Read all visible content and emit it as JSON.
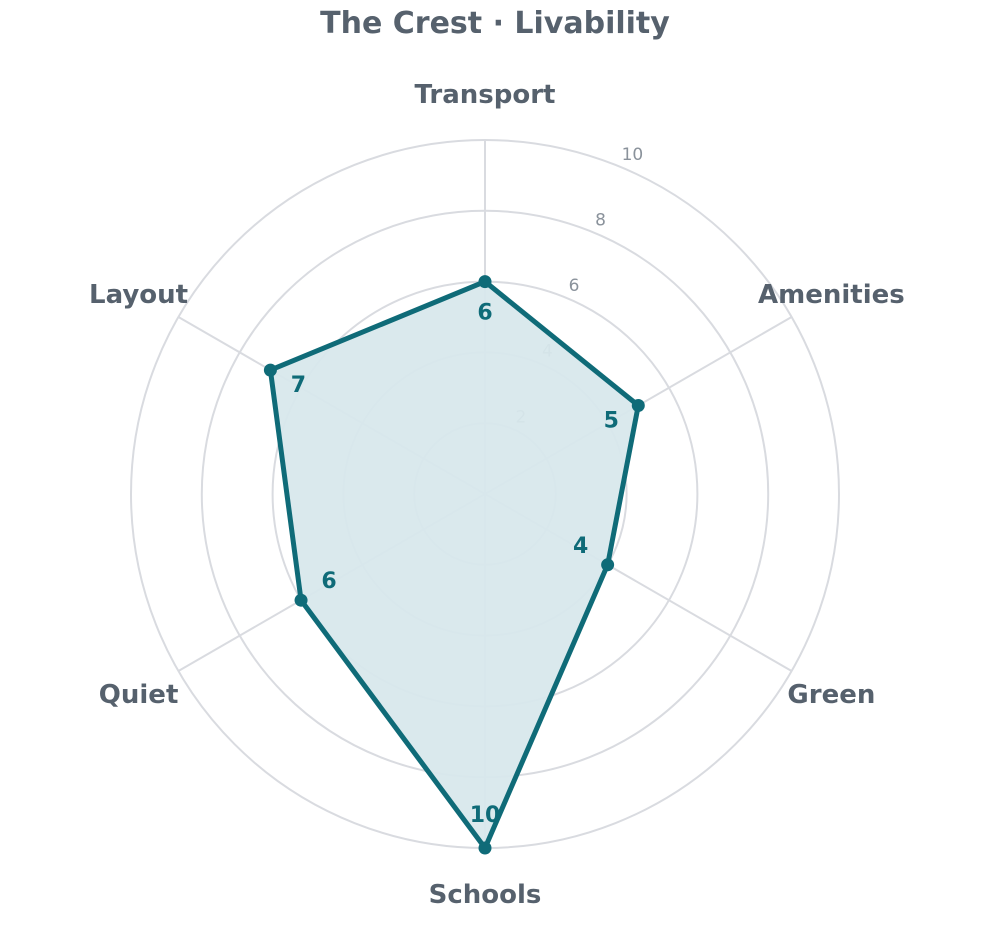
{
  "chart_data": {
    "type": "radar",
    "title": "The Crest · Livability",
    "categories": [
      "Transport",
      "Amenities",
      "Green",
      "Schools",
      "Quiet",
      "Layout"
    ],
    "series": [
      {
        "values": [
          6,
          5,
          4,
          10,
          6,
          7
        ]
      }
    ],
    "rlim": [
      0,
      10
    ],
    "ticks": [
      2,
      4,
      6,
      8,
      10
    ],
    "grid": true,
    "legend": "none"
  },
  "colors": {
    "series_line": "#0f6b78",
    "series_fill": "#d8e8ec",
    "grid": "#d9dbe0",
    "text": "#56616d",
    "tick_text": "#8a929b"
  }
}
